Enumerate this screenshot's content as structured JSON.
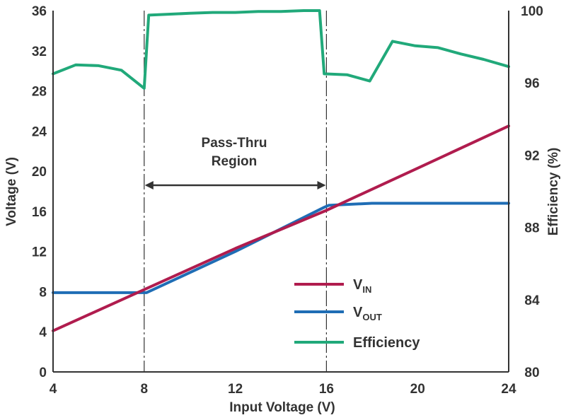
{
  "chart_data": {
    "type": "line",
    "title": "",
    "xlabel": "Input Voltage (V)",
    "ylabel": "Voltage (V)",
    "y2label": "Efficiency (%)",
    "xlim": [
      4,
      24
    ],
    "ylim": [
      0,
      36
    ],
    "y2lim": [
      80,
      100
    ],
    "x_ticks": [
      "4",
      "8",
      "12",
      "16",
      "20",
      "24"
    ],
    "y_ticks": [
      "0",
      "4",
      "8",
      "12",
      "16",
      "20",
      "24",
      "28",
      "32",
      "36"
    ],
    "y2_ticks": [
      "80",
      "84",
      "88",
      "92",
      "96",
      "100"
    ],
    "grid": false,
    "legend_position": "bottom-right",
    "colors": {
      "vin": "#b01c4e",
      "vout": "#1f6db5",
      "efficiency": "#21a97a",
      "axis": "#333333"
    },
    "series": [
      {
        "name": "V",
        "name_sub": "IN",
        "axis": "left",
        "x": [
          4,
          8,
          12,
          16,
          20,
          24
        ],
        "values": [
          4.1,
          8.2,
          12.3,
          16.1,
          20.3,
          24.5
        ]
      },
      {
        "name": "V",
        "name_sub": "OUT",
        "axis": "left",
        "x": [
          4,
          8,
          8.1,
          12,
          15.9,
          16.1,
          18,
          20,
          22,
          24
        ],
        "values": [
          7.9,
          7.9,
          7.9,
          12.0,
          16.4,
          16.6,
          16.8,
          16.8,
          16.8,
          16.8
        ]
      },
      {
        "name": "Efficiency",
        "axis": "right",
        "x": [
          4,
          5,
          6,
          7,
          8,
          8.2,
          10,
          11,
          12,
          13,
          14,
          15,
          15.7,
          15.9,
          16.9,
          17.9,
          18.9,
          19.9,
          20.9,
          21.9,
          22.9,
          24
        ],
        "values": [
          96.5,
          97.0,
          96.95,
          96.7,
          95.7,
          99.75,
          99.85,
          99.9,
          99.9,
          99.95,
          99.95,
          100.0,
          100.0,
          96.5,
          96.45,
          96.1,
          98.3,
          98.05,
          97.95,
          97.6,
          97.3,
          96.9
        ]
      }
    ],
    "annotations": [
      {
        "text_lines": [
          "Pass-Thru",
          "Region"
        ],
        "x_from": 8,
        "x_to": 16,
        "arrow": "double"
      }
    ]
  }
}
